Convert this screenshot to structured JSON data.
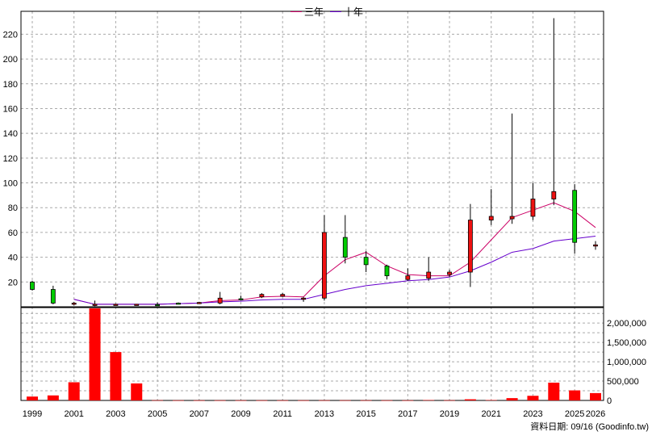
{
  "legend": {
    "series1": "三年",
    "series2": "十年"
  },
  "colors": {
    "three_year": "#cc0066",
    "ten_year": "#6600cc",
    "up": "#00cc00",
    "down": "#ee1111",
    "volume": "#ff0000",
    "grid": "#aaaaaa"
  },
  "footer": "資料日期: 09/16 (Goodinfo.tw)",
  "chart_data": {
    "type": "candlestick+bar",
    "years": [
      1999,
      2000,
      2001,
      2002,
      2003,
      2004,
      2005,
      2006,
      2007,
      2008,
      2009,
      2010,
      2011,
      2012,
      2013,
      2014,
      2015,
      2016,
      2017,
      2018,
      2019,
      2020,
      2021,
      2022,
      2023,
      2024,
      2025,
      2026
    ],
    "x_tick_labels": [
      "1999",
      "2001",
      "2003",
      "2005",
      "2007",
      "2009",
      "2011",
      "2013",
      "2015",
      "2017",
      "2019",
      "2021",
      "2023",
      "2025",
      "2026"
    ],
    "price_axis": {
      "ticks": [
        20,
        40,
        60,
        80,
        100,
        120,
        140,
        160,
        180,
        200,
        220
      ],
      "ylim": [
        0,
        232
      ]
    },
    "volume_axis": {
      "ticks": [
        0,
        500000,
        1000000,
        1500000,
        2000000
      ],
      "tick_labels": [
        "0",
        "500,000",
        "1,000,000",
        "1,500,000",
        "2,000,000"
      ],
      "ylim": [
        0,
        2400000
      ]
    },
    "candles": [
      {
        "year": 1999,
        "open": 14,
        "high": 21,
        "low": 13,
        "close": 20
      },
      {
        "year": 2000,
        "open": 3,
        "high": 17,
        "low": 2,
        "close": 14
      },
      {
        "year": 2001,
        "open": 3,
        "high": 4,
        "low": 1,
        "close": 2
      },
      {
        "year": 2002,
        "open": 2,
        "high": 5,
        "low": 0.5,
        "close": 1
      },
      {
        "year": 2003,
        "open": 2,
        "high": 2.5,
        "low": 1,
        "close": 1.5
      },
      {
        "year": 2004,
        "open": 2,
        "high": 2.3,
        "low": 1.2,
        "close": 1.6
      },
      {
        "year": 2005,
        "open": 1.5,
        "high": 3.5,
        "low": 0.8,
        "close": 1.8
      },
      {
        "year": 2006,
        "open": 2.5,
        "high": 3.5,
        "low": 2,
        "close": 3
      },
      {
        "year": 2007,
        "open": 3.5,
        "high": 4,
        "low": 2.5,
        "close": 3
      },
      {
        "year": 2008,
        "open": 7,
        "high": 12,
        "low": 2,
        "close": 3
      },
      {
        "year": 2009,
        "open": 6,
        "high": 9,
        "low": 5,
        "close": 6.5
      },
      {
        "year": 2010,
        "open": 10,
        "high": 11,
        "low": 7,
        "close": 8
      },
      {
        "year": 2011,
        "open": 10,
        "high": 11,
        "low": 8,
        "close": 8.5
      },
      {
        "year": 2012,
        "open": 7,
        "high": 8,
        "low": 4,
        "close": 6
      },
      {
        "year": 2013,
        "open": 60,
        "high": 74,
        "low": 5,
        "close": 7
      },
      {
        "year": 2014,
        "open": 40,
        "high": 74,
        "low": 35,
        "close": 56
      },
      {
        "year": 2015,
        "open": 34,
        "high": 45,
        "low": 28,
        "close": 40
      },
      {
        "year": 2016,
        "open": 25,
        "high": 34,
        "low": 22,
        "close": 33
      },
      {
        "year": 2017,
        "open": 25,
        "high": 31,
        "low": 21,
        "close": 22
      },
      {
        "year": 2018,
        "open": 28,
        "high": 40,
        "low": 21,
        "close": 23
      },
      {
        "year": 2019,
        "open": 28,
        "high": 30,
        "low": 24,
        "close": 26
      },
      {
        "year": 2020,
        "open": 70,
        "high": 83,
        "low": 16,
        "close": 28
      },
      {
        "year": 2021,
        "open": 73,
        "high": 95,
        "low": 66,
        "close": 70
      },
      {
        "year": 2022,
        "open": 73,
        "high": 156,
        "low": 67,
        "close": 71
      },
      {
        "year": 2023,
        "open": 87,
        "high": 100,
        "low": 70,
        "close": 73
      },
      {
        "year": 2024,
        "open": 93,
        "high": 233,
        "low": 82,
        "close": 87
      },
      {
        "year": 2025,
        "open": 52,
        "high": 99,
        "low": 43,
        "close": 94
      },
      {
        "year": 2026,
        "open": 50,
        "high": 53,
        "low": 46,
        "close": 49
      }
    ],
    "series": [
      {
        "name": "三年",
        "x": [
          2001,
          2002,
          2003,
          2004,
          2005,
          2006,
          2007,
          2008,
          2009,
          2010,
          2011,
          2012,
          2013,
          2014,
          2015,
          2016,
          2017,
          2018,
          2019,
          2020,
          2021,
          2022,
          2023,
          2024,
          2025,
          2026
        ],
        "values": [
          6,
          2,
          2,
          2,
          2,
          2.5,
          3,
          5,
          5.5,
          8,
          8.5,
          8,
          25,
          38,
          44,
          33,
          26,
          25,
          25,
          36,
          54,
          72,
          78,
          84,
          77,
          64
        ]
      },
      {
        "name": "十年",
        "x": [
          2001,
          2002,
          2003,
          2004,
          2005,
          2006,
          2007,
          2008,
          2009,
          2010,
          2011,
          2012,
          2013,
          2014,
          2015,
          2016,
          2017,
          2018,
          2019,
          2020,
          2021,
          2022,
          2023,
          2024,
          2025,
          2026
        ],
        "values": [
          6,
          2,
          2,
          2,
          2,
          2.5,
          3,
          4,
          4.5,
          5.5,
          6,
          6,
          10,
          14,
          17,
          19,
          21,
          22,
          24,
          29,
          36,
          44,
          47,
          53,
          55,
          57
        ]
      }
    ],
    "volume": [
      {
        "year": 1999,
        "value": 100000
      },
      {
        "year": 2000,
        "value": 130000
      },
      {
        "year": 2001,
        "value": 470000
      },
      {
        "year": 2002,
        "value": 2380000
      },
      {
        "year": 2003,
        "value": 1250000
      },
      {
        "year": 2004,
        "value": 440000
      },
      {
        "year": 2005,
        "value": 5000
      },
      {
        "year": 2006,
        "value": 3000
      },
      {
        "year": 2007,
        "value": 3000
      },
      {
        "year": 2008,
        "value": 3000
      },
      {
        "year": 2009,
        "value": 3000
      },
      {
        "year": 2010,
        "value": 3000
      },
      {
        "year": 2011,
        "value": 3000
      },
      {
        "year": 2012,
        "value": 3000
      },
      {
        "year": 2013,
        "value": 4000
      },
      {
        "year": 2014,
        "value": 4000
      },
      {
        "year": 2015,
        "value": 4000
      },
      {
        "year": 2016,
        "value": 3000
      },
      {
        "year": 2017,
        "value": 3000
      },
      {
        "year": 2018,
        "value": 8000
      },
      {
        "year": 2019,
        "value": 5000
      },
      {
        "year": 2020,
        "value": 30000
      },
      {
        "year": 2021,
        "value": 10000
      },
      {
        "year": 2022,
        "value": 60000
      },
      {
        "year": 2023,
        "value": 120000
      },
      {
        "year": 2024,
        "value": 460000
      },
      {
        "year": 2025,
        "value": 260000
      },
      {
        "year": 2026,
        "value": 190000
      }
    ]
  }
}
